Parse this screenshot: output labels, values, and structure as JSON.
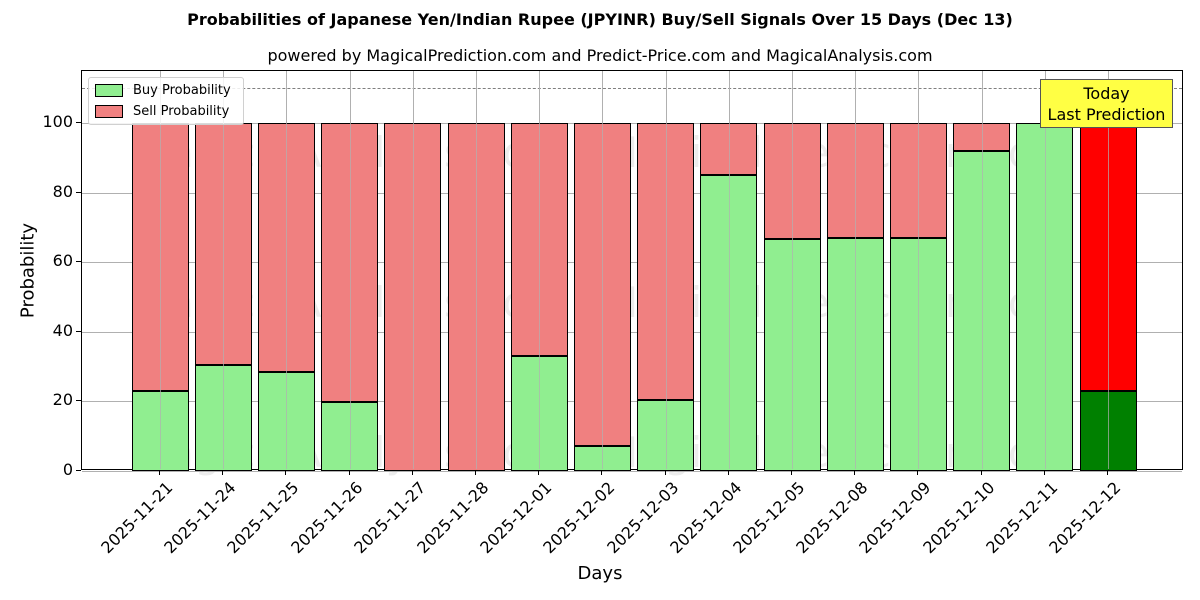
{
  "title": "Probabilities of Japanese Yen/Indian Rupee (JPYINR) Buy/Sell Signals Over 15 Days (Dec 13)",
  "subtitle": "powered by MagicalPrediction.com and Predict-Price.com and MagicalAnalysis.com",
  "legend": {
    "buy": "Buy Probability",
    "sell": "Sell Probability"
  },
  "annotation": {
    "line1": "Today",
    "line2": "Last Prediction"
  },
  "watermarks": [
    "MagicalAnalysis.com",
    "MagicalPrediction.com"
  ],
  "colors": {
    "buy": "#90ee90",
    "sell": "#f08080",
    "today_buy": "#008000",
    "today_sell": "#ff0000",
    "annotation_bg": "#ffff44"
  },
  "chart_data": {
    "type": "bar",
    "stacked": true,
    "title": "Probabilities of Japanese Yen/Indian Rupee (JPYINR) Buy/Sell Signals Over 15 Days (Dec 13)",
    "subtitle": "powered by MagicalPrediction.com and Predict-Price.com and MagicalAnalysis.com",
    "xlabel": "Days",
    "ylabel": "Probability",
    "ylim": [
      0,
      115
    ],
    "yticks": [
      0,
      20,
      40,
      60,
      80,
      100
    ],
    "grid": true,
    "legend_position": "upper left",
    "reference_line": {
      "y": 110,
      "style": "dashed"
    },
    "categories": [
      "2025-11-21",
      "2025-11-24",
      "2025-11-25",
      "2025-11-26",
      "2025-11-27",
      "2025-11-28",
      "2025-12-01",
      "2025-12-02",
      "2025-12-03",
      "2025-12-04",
      "2025-12-05",
      "2025-12-08",
      "2025-12-09",
      "2025-12-10",
      "2025-12-11",
      "2025-12-12"
    ],
    "series": [
      {
        "name": "Buy Probability",
        "values": [
          23.1,
          30.6,
          28.6,
          19.7,
          0,
          0,
          33.0,
          7.2,
          20.5,
          85.0,
          66.8,
          67.1,
          67.1,
          91.9,
          100,
          23.1
        ]
      },
      {
        "name": "Sell Probability",
        "values": [
          76.9,
          69.4,
          71.4,
          80.3,
          100,
          100,
          67.0,
          92.8,
          79.5,
          15.0,
          33.2,
          32.9,
          32.9,
          8.1,
          0,
          76.9
        ]
      }
    ],
    "annotations": [
      {
        "text": "Today\nLast Prediction",
        "x": "2025-12-12"
      }
    ]
  }
}
